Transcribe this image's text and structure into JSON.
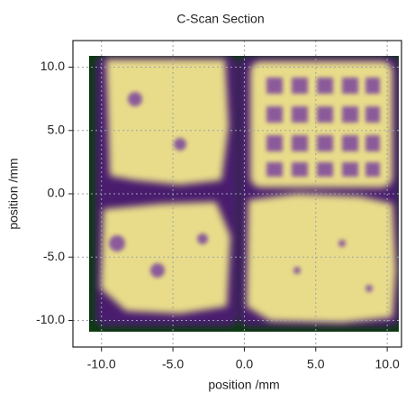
{
  "chart_data": {
    "type": "heatmap",
    "title": "C-Scan Section",
    "xlabel": "position /mm",
    "ylabel": "position /mm",
    "xlim": [
      -12,
      11
    ],
    "ylim": [
      -12.1,
      12.1
    ],
    "xticks": [
      {
        "value": -10,
        "label": "-10.0"
      },
      {
        "value": -5,
        "label": "-5.0"
      },
      {
        "value": 0,
        "label": "0.0"
      },
      {
        "value": 5,
        "label": "5.0"
      },
      {
        "value": 10,
        "label": "10.0"
      }
    ],
    "yticks": [
      {
        "value": -10,
        "label": "-10.0"
      },
      {
        "value": -5,
        "label": "-5.0"
      },
      {
        "value": 0,
        "label": "0.0"
      },
      {
        "value": 5,
        "label": "5.0"
      },
      {
        "value": 10,
        "label": "10.0"
      }
    ],
    "grid": true
  }
}
